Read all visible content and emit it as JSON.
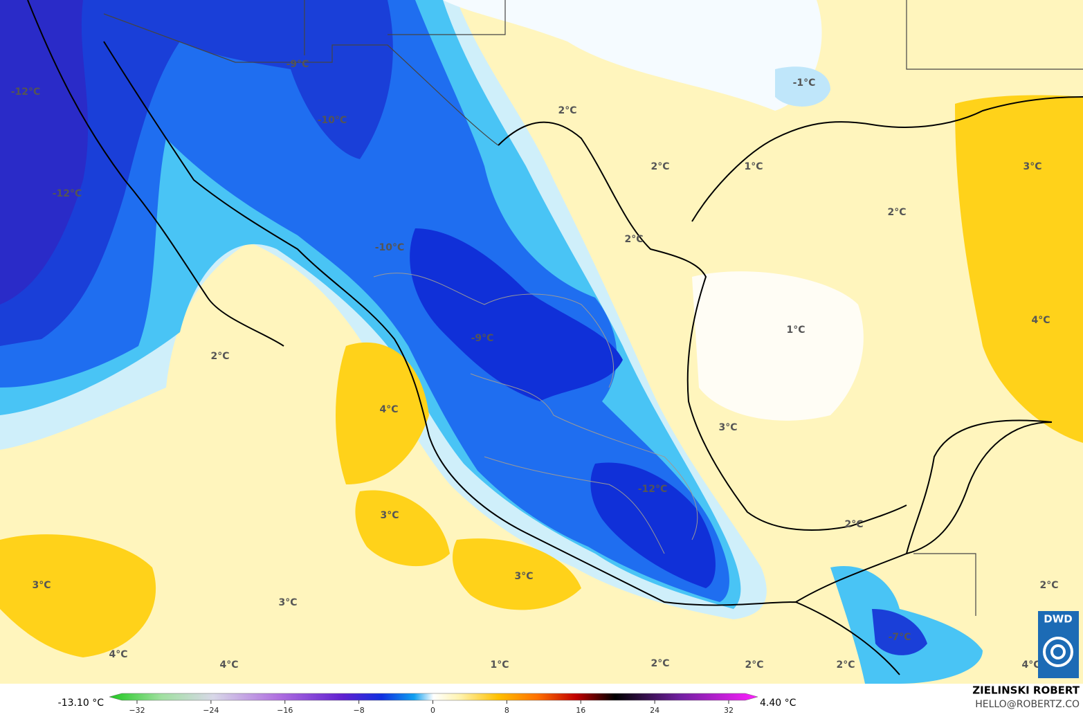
{
  "map": {
    "labels": [
      "-12°C",
      "-9°C",
      "-10°C",
      "-12°C",
      "-1°C",
      "2°C",
      "2°C",
      "1°C",
      "3°C",
      "2°C",
      "2°C",
      "-10°C",
      "1°C",
      "4°C",
      "-9°C",
      "2°C",
      "4°C",
      "3°C",
      "-12°C",
      "3°C",
      "2°C",
      "3°C",
      "3°C",
      "2°C",
      "3°C",
      "-7°C",
      "4°C",
      "4°C",
      "1°C",
      "2°C",
      "2°C",
      "2°C",
      "4°C"
    ],
    "logo": "DWD"
  },
  "colorbar": {
    "min_label": "-13.10 °C",
    "max_label": "4.40 °C",
    "ticks": [
      {
        "value": -32,
        "label": "−32"
      },
      {
        "value": -24,
        "label": "−24"
      },
      {
        "value": -16,
        "label": "−16"
      },
      {
        "value": -8,
        "label": "−8"
      },
      0,
      8,
      16,
      24,
      32
    ]
  },
  "credit": {
    "author": "ZIELINSKI ROBERT",
    "contact": "HELLO@ROBERTZ.CO"
  }
}
